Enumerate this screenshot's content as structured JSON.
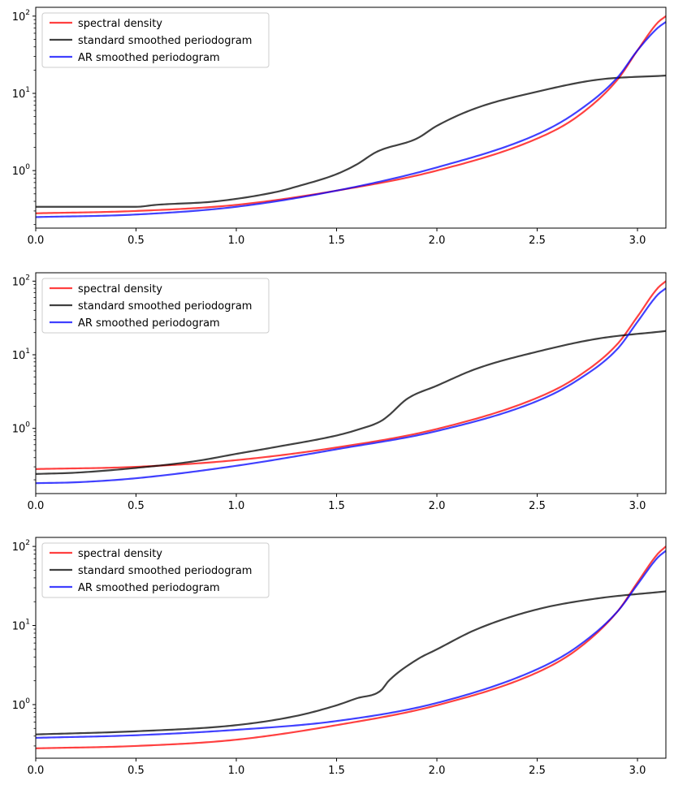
{
  "chart_data": [
    {
      "type": "line",
      "title": "",
      "xlabel": "",
      "ylabel": "",
      "yscale": "log",
      "xlim": [
        0,
        3.1416
      ],
      "ylim": [
        0.18,
        130
      ],
      "xticks": [
        0.0,
        0.5,
        1.0,
        1.5,
        2.0,
        2.5,
        3.0
      ],
      "xtick_labels": [
        "0.0",
        "0.5",
        "1.0",
        "1.5",
        "2.0",
        "2.5",
        "3.0"
      ],
      "yticks": [
        1,
        10,
        100
      ],
      "ytick_labels": [
        "10",
        "10",
        "10"
      ],
      "ytick_exponents": [
        "0",
        "1",
        "2"
      ],
      "legend": "top-left",
      "series": [
        {
          "name": "spectral density",
          "color": "#ff0000",
          "x": [
            0,
            0.5,
            1.0,
            1.5,
            2.0,
            2.5,
            2.7,
            2.9,
            3.0,
            3.1,
            3.1416
          ],
          "y": [
            0.28,
            0.3,
            0.36,
            0.55,
            1.0,
            2.6,
            5.0,
            15,
            36,
            82,
            100
          ]
        },
        {
          "name": "standard smoothed periodogram",
          "color": "#000000",
          "x": [
            0,
            0.5,
            0.6,
            0.9,
            1.2,
            1.3,
            1.5,
            1.6,
            1.7,
            1.9,
            2.0,
            2.2,
            2.5,
            2.8,
            3.1416
          ],
          "y": [
            0.34,
            0.34,
            0.36,
            0.4,
            0.53,
            0.62,
            0.9,
            1.2,
            1.75,
            2.6,
            3.8,
            6.5,
            10.5,
            15,
            17
          ]
        },
        {
          "name": "AR smoothed periodogram",
          "color": "#0000ff",
          "x": [
            0,
            0.5,
            1.0,
            1.5,
            2.0,
            2.5,
            2.7,
            2.9,
            3.0,
            3.1,
            3.1416
          ],
          "y": [
            0.25,
            0.27,
            0.34,
            0.55,
            1.1,
            2.95,
            5.8,
            16,
            36,
            70,
            84
          ]
        }
      ]
    },
    {
      "type": "line",
      "title": "",
      "xlabel": "",
      "ylabel": "",
      "yscale": "log",
      "xlim": [
        0,
        3.1416
      ],
      "ylim": [
        0.13,
        130
      ],
      "xticks": [
        0.0,
        0.5,
        1.0,
        1.5,
        2.0,
        2.5,
        3.0
      ],
      "xtick_labels": [
        "0.0",
        "0.5",
        "1.0",
        "1.5",
        "2.0",
        "2.5",
        "3.0"
      ],
      "yticks": [
        1,
        10,
        100
      ],
      "ytick_labels": [
        "10",
        "10",
        "10"
      ],
      "ytick_exponents": [
        "0",
        "1",
        "2"
      ],
      "legend": "top-left",
      "series": [
        {
          "name": "spectral density",
          "color": "#ff0000",
          "x": [
            0,
            0.5,
            1.0,
            1.5,
            2.0,
            2.5,
            2.7,
            2.9,
            3.0,
            3.1,
            3.1416
          ],
          "y": [
            0.28,
            0.3,
            0.37,
            0.55,
            0.98,
            2.6,
            5.0,
            14,
            33,
            80,
            100
          ]
        },
        {
          "name": "standard smoothed periodogram",
          "color": "#000000",
          "x": [
            0,
            0.2,
            0.5,
            0.8,
            1.0,
            1.2,
            1.5,
            1.6,
            1.72,
            1.76,
            1.85,
            2.0,
            2.2,
            2.5,
            2.8,
            3.1416
          ],
          "y": [
            0.24,
            0.25,
            0.29,
            0.36,
            0.45,
            0.56,
            0.8,
            0.95,
            1.25,
            1.5,
            2.5,
            3.8,
            6.5,
            11,
            16.5,
            21
          ]
        },
        {
          "name": "AR smoothed periodogram",
          "color": "#0000ff",
          "x": [
            0,
            0.2,
            0.5,
            1.0,
            1.5,
            2.0,
            2.5,
            2.7,
            2.9,
            3.0,
            3.1,
            3.1416
          ],
          "y": [
            0.18,
            0.185,
            0.21,
            0.31,
            0.52,
            0.92,
            2.35,
            4.5,
            12,
            28,
            65,
            80
          ]
        }
      ]
    },
    {
      "type": "line",
      "title": "",
      "xlabel": "",
      "ylabel": "",
      "yscale": "log",
      "xlim": [
        0,
        3.1416
      ],
      "ylim": [
        0.21,
        130
      ],
      "xticks": [
        0.0,
        0.5,
        1.0,
        1.5,
        2.0,
        2.5,
        3.0
      ],
      "xtick_labels": [
        "0.0",
        "0.5",
        "1.0",
        "1.5",
        "2.0",
        "2.5",
        "3.0"
      ],
      "yticks": [
        1,
        10,
        100
      ],
      "ytick_labels": [
        "10",
        "10",
        "10"
      ],
      "ytick_exponents": [
        "0",
        "1",
        "2"
      ],
      "legend": "top-left",
      "series": [
        {
          "name": "spectral density",
          "color": "#ff0000",
          "x": [
            0,
            0.5,
            1.0,
            1.5,
            2.0,
            2.5,
            2.7,
            2.9,
            3.0,
            3.1,
            3.1416
          ],
          "y": [
            0.28,
            0.3,
            0.36,
            0.55,
            0.98,
            2.55,
            5.0,
            15,
            35,
            80,
            100
          ]
        },
        {
          "name": "standard smoothed periodogram",
          "color": "#000000",
          "x": [
            0,
            0.5,
            1.0,
            1.3,
            1.5,
            1.6,
            1.72,
            1.76,
            1.9,
            2.0,
            2.2,
            2.5,
            2.8,
            3.1416
          ],
          "y": [
            0.42,
            0.46,
            0.55,
            0.72,
            0.98,
            1.2,
            1.5,
            2.0,
            3.7,
            5.0,
            9.0,
            16,
            22,
            27
          ]
        },
        {
          "name": "AR smoothed periodogram",
          "color": "#0000ff",
          "x": [
            0,
            0.5,
            1.0,
            1.5,
            2.0,
            2.5,
            2.7,
            2.9,
            3.0,
            3.1,
            3.1416
          ],
          "y": [
            0.38,
            0.41,
            0.48,
            0.62,
            1.05,
            2.8,
            5.4,
            15,
            33,
            72,
            88
          ]
        }
      ]
    }
  ]
}
